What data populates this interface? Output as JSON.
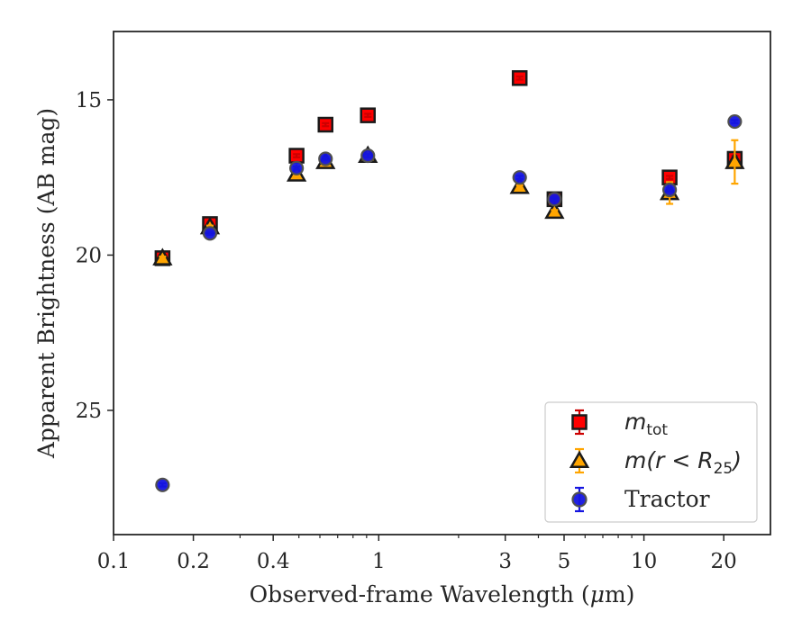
{
  "chart_data": {
    "type": "scatter",
    "xlabel_prefix": "Observed-frame Wavelength (",
    "xlabel_unit": "μ",
    "xlabel_suffix": "m)",
    "ylabel": "Apparent Brightness (AB mag)",
    "x_scale": "log",
    "xlim": [
      0.1,
      30
    ],
    "ylim": [
      29.0,
      12.8
    ],
    "y_inverted": true,
    "x_ticks": [
      0.1,
      0.2,
      0.4,
      1,
      3,
      5,
      10,
      20
    ],
    "x_tick_labels": [
      "0.1",
      "0.2",
      "0.4",
      "1",
      "3",
      "5",
      "10",
      "20"
    ],
    "y_ticks": [
      15,
      20,
      25
    ],
    "y_tick_labels": [
      "15",
      "20",
      "25"
    ],
    "grid": false,
    "legend_position": "lower-right",
    "series": [
      {
        "name_main": "m",
        "name_sub": "tot",
        "marker": "square",
        "color": "#ff0000",
        "edge": "#1a1a1a",
        "errcolor": "#cc0000",
        "x": [
          0.153,
          0.231,
          0.49,
          0.63,
          0.91,
          3.4,
          4.6,
          12.5,
          22.0
        ],
        "y": [
          20.1,
          19.0,
          16.8,
          15.8,
          15.5,
          14.3,
          18.2,
          17.5,
          16.9
        ],
        "yerr": [
          0.05,
          0.05,
          0.05,
          0.05,
          0.05,
          0.05,
          0.05,
          0.05,
          0.1
        ]
      },
      {
        "name_main": "m(r < R",
        "name_sub": "25",
        "name_end": ")",
        "marker": "triangle",
        "color": "#ffa500",
        "edge": "#1a1a1a",
        "errcolor": "#ffa500",
        "x": [
          0.153,
          0.231,
          0.49,
          0.63,
          0.91,
          3.4,
          4.6,
          12.5,
          22.0
        ],
        "y": [
          20.1,
          19.1,
          17.4,
          17.0,
          16.8,
          17.8,
          18.6,
          18.0,
          17.0
        ],
        "yerr": [
          0.05,
          0.05,
          0.05,
          0.05,
          0.05,
          0.05,
          0.05,
          0.35,
          0.7
        ]
      },
      {
        "name_main": "Tractor",
        "marker": "circle",
        "color": "#1515e0",
        "edge": "#505050",
        "errcolor": "#1515e0",
        "x": [
          0.153,
          0.231,
          0.49,
          0.63,
          0.91,
          3.4,
          4.6,
          12.5,
          22.0
        ],
        "y": [
          27.4,
          19.3,
          17.2,
          16.9,
          16.8,
          17.5,
          18.2,
          17.9,
          15.7
        ],
        "yerr": [
          0.05,
          0.05,
          0.05,
          0.05,
          0.05,
          0.05,
          0.05,
          0.05,
          0.05
        ]
      }
    ]
  }
}
